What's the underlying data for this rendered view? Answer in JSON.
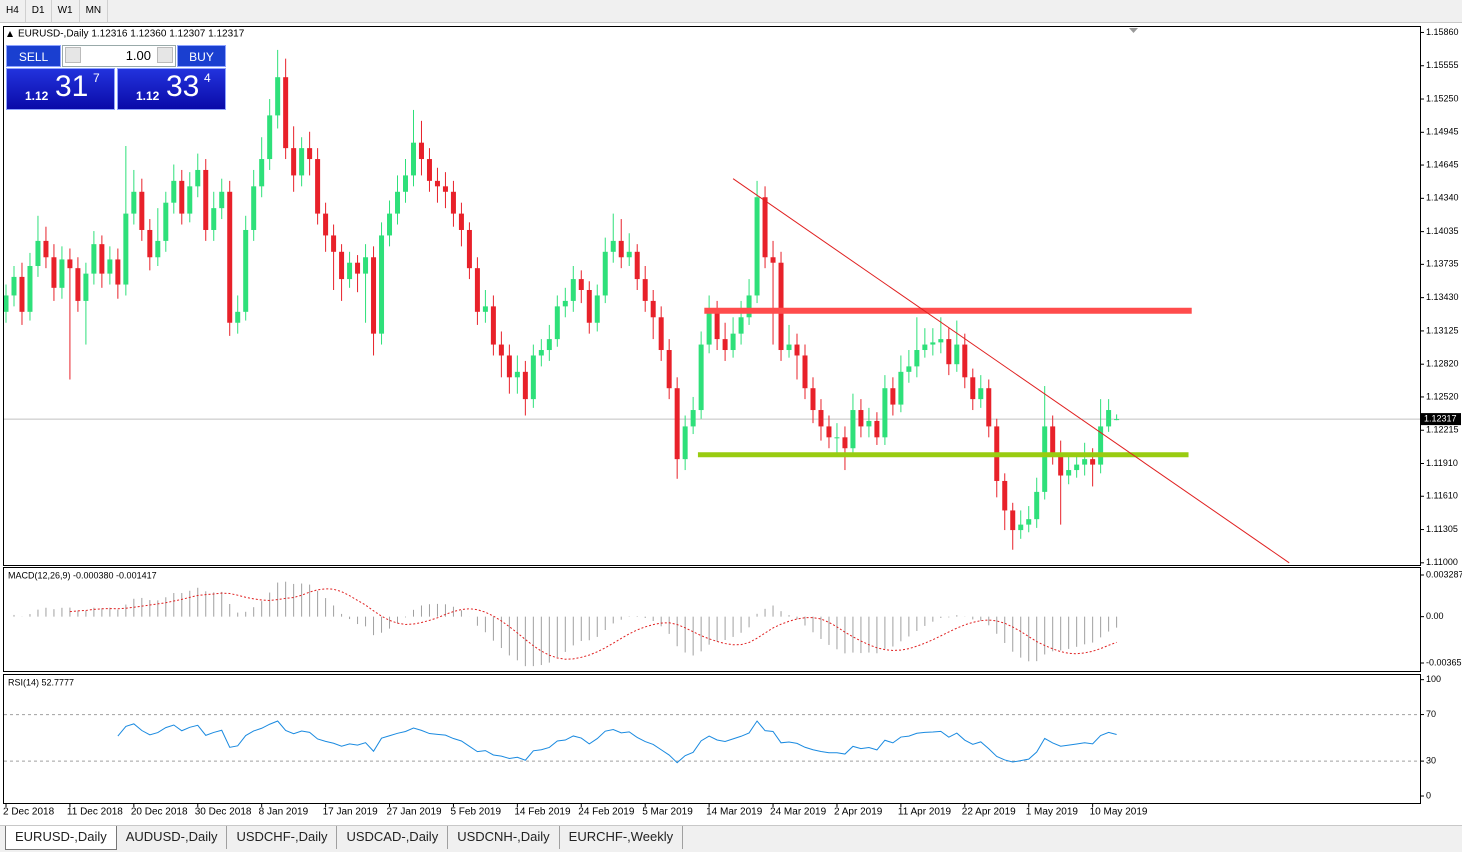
{
  "toolbar": {
    "timeframes": [
      "H4",
      "D1",
      "W1",
      "MN"
    ]
  },
  "tabs": [
    "EURUSD-,Daily",
    "AUDUSD-,Daily",
    "USDCHF-,Daily",
    "USDCAD-,Daily",
    "USDCNH-,Daily",
    "EURCHF-,Weekly"
  ],
  "trade": {
    "sell": "SELL",
    "buy": "BUY",
    "lots": "1.00",
    "bid": {
      "prefix": "1.12",
      "big": "31",
      "pip": "7"
    },
    "ask": {
      "prefix": "1.12",
      "big": "33",
      "pip": "4"
    }
  },
  "chart_data": [
    {
      "type": "candlestick",
      "title": "EURUSD-,Daily  1.12316 1.12360 1.12307 1.12317",
      "up_color": "#2ee07a",
      "down_color": "#e8212a",
      "categories": [
        "2 Dec 2018",
        null,
        null,
        null,
        null,
        null,
        null,
        null,
        "11 Dec 2018",
        null,
        null,
        null,
        null,
        null,
        null,
        null,
        "20 Dec 2018",
        null,
        null,
        null,
        null,
        null,
        null,
        null,
        "30 Dec 2018",
        null,
        null,
        null,
        null,
        null,
        null,
        null,
        "8 Jan 2019",
        null,
        null,
        null,
        null,
        null,
        null,
        null,
        "17 Jan 2019",
        null,
        null,
        null,
        null,
        null,
        null,
        null,
        "27 Jan 2019",
        null,
        null,
        null,
        null,
        null,
        null,
        null,
        "5 Feb 2019",
        null,
        null,
        null,
        null,
        null,
        null,
        null,
        "14 Feb 2019",
        null,
        null,
        null,
        null,
        null,
        null,
        null,
        "24 Feb 2019",
        null,
        null,
        null,
        null,
        null,
        null,
        null,
        "5 Mar 2019",
        null,
        null,
        null,
        null,
        null,
        null,
        null,
        "14 Mar 2019",
        null,
        null,
        null,
        null,
        null,
        null,
        null,
        "24 Mar 2019",
        null,
        null,
        null,
        null,
        null,
        null,
        null,
        "2 Apr 2019",
        null,
        null,
        null,
        null,
        null,
        null,
        null,
        "11 Apr 2019",
        null,
        null,
        null,
        null,
        null,
        null,
        null,
        "22 Apr 2019",
        null,
        null,
        null,
        null,
        null,
        null,
        null,
        "1 May 2019",
        null,
        null,
        null,
        null,
        null,
        null,
        null,
        "10 May 2019",
        null,
        null,
        null
      ],
      "open": [
        1.133,
        1.1345,
        1.1362,
        1.133,
        1.1372,
        1.1395,
        1.138,
        1.1352,
        1.1378,
        1.137,
        1.134,
        1.1365,
        1.1392,
        1.1365,
        1.1378,
        1.1355,
        1.142,
        1.144,
        1.1405,
        1.138,
        1.1395,
        1.143,
        1.145,
        1.142,
        1.1445,
        1.146,
        1.1405,
        1.1425,
        1.144,
        1.132,
        1.133,
        1.1405,
        1.1445,
        1.147,
        1.151,
        1.1545,
        1.148,
        1.1455,
        1.148,
        1.147,
        1.142,
        1.14,
        1.1385,
        1.136,
        1.1375,
        1.1365,
        1.138,
        1.131,
        1.14,
        1.142,
        1.144,
        1.1455,
        1.1485,
        1.147,
        1.145,
        1.1445,
        1.144,
        1.142,
        1.1405,
        1.137,
        1.133,
        1.1335,
        1.13,
        1.129,
        1.127,
        1.1275,
        1.125,
        1.129,
        1.1295,
        1.1305,
        1.1335,
        1.134,
        1.136,
        1.135,
        1.132,
        1.1345,
        1.1385,
        1.1395,
        1.138,
        1.1385,
        1.136,
        1.134,
        1.1325,
        1.1295,
        1.126,
        1.1195,
        1.1225,
        1.124,
        1.13,
        1.133,
        1.1305,
        1.1295,
        1.131,
        1.1325,
        1.1345,
        1.1435,
        1.138,
        1.1375,
        1.1295,
        1.13,
        1.129,
        1.126,
        1.124,
        1.1225,
        1.1215,
        1.1215,
        1.1205,
        1.124,
        1.1225,
        1.123,
        1.1215,
        1.126,
        1.1245,
        1.1275,
        1.128,
        1.1295,
        1.13,
        1.1302,
        1.1305,
        1.1282,
        1.13,
        1.127,
        1.125,
        1.126,
        1.1225,
        1.1175,
        1.1148,
        1.113,
        1.1135,
        1.114,
        1.1165,
        1.1225,
        1.12,
        1.118,
        1.1185,
        1.119,
        1.1195,
        1.119,
        1.1225,
        1.12316
      ],
      "high": [
        1.1355,
        1.1372,
        1.1375,
        1.1384,
        1.1418,
        1.1408,
        1.1392,
        1.139,
        1.1388,
        1.138,
        1.1375,
        1.1404,
        1.14,
        1.139,
        1.1388,
        1.1482,
        1.146,
        1.1452,
        1.1415,
        1.1425,
        1.144,
        1.1465,
        1.146,
        1.1458,
        1.1475,
        1.147,
        1.144,
        1.1452,
        1.145,
        1.1345,
        1.1418,
        1.146,
        1.149,
        1.1525,
        1.157,
        1.1562,
        1.15,
        1.149,
        1.1495,
        1.148,
        1.143,
        1.141,
        1.1392,
        1.1385,
        1.1382,
        1.1392,
        1.139,
        1.1412,
        1.1432,
        1.1455,
        1.147,
        1.1515,
        1.1505,
        1.148,
        1.1462,
        1.1458,
        1.145,
        1.143,
        1.1412,
        1.138,
        1.135,
        1.1345,
        1.1312,
        1.13,
        1.129,
        1.1285,
        1.13,
        1.1305,
        1.1318,
        1.1345,
        1.1352,
        1.1372,
        1.1368,
        1.1358,
        1.1355,
        1.1398,
        1.142,
        1.1415,
        1.1402,
        1.1392,
        1.1372,
        1.135,
        1.1335,
        1.1305,
        1.127,
        1.1235,
        1.1252,
        1.1312,
        1.1345,
        1.134,
        1.132,
        1.1325,
        1.134,
        1.136,
        1.145,
        1.1445,
        1.1395,
        1.1385,
        1.1318,
        1.131,
        1.13,
        1.127,
        1.125,
        1.1235,
        1.1228,
        1.1225,
        1.1255,
        1.125,
        1.1242,
        1.1238,
        1.1272,
        1.127,
        1.129,
        1.1295,
        1.1325,
        1.1315,
        1.1315,
        1.1325,
        1.1315,
        1.1322,
        1.131,
        1.1278,
        1.1272,
        1.1268,
        1.1232,
        1.1182,
        1.1155,
        1.1148,
        1.1152,
        1.1178,
        1.1262,
        1.1235,
        1.1212,
        1.1198,
        1.12,
        1.121,
        1.1205,
        1.125,
        1.125,
        1.1236
      ],
      "low": [
        1.132,
        1.1335,
        1.1318,
        1.1322,
        1.1362,
        1.137,
        1.134,
        1.1342,
        1.1268,
        1.133,
        1.13,
        1.1355,
        1.1352,
        1.1355,
        1.1342,
        1.1345,
        1.141,
        1.1395,
        1.1368,
        1.1372,
        1.1385,
        1.142,
        1.141,
        1.1412,
        1.1435,
        1.1395,
        1.1395,
        1.1415,
        1.1308,
        1.131,
        1.1322,
        1.1395,
        1.1435,
        1.146,
        1.1498,
        1.147,
        1.144,
        1.1445,
        1.1455,
        1.141,
        1.1385,
        1.135,
        1.134,
        1.1352,
        1.1348,
        1.132,
        1.129,
        1.13,
        1.139,
        1.141,
        1.143,
        1.1445,
        1.1455,
        1.144,
        1.143,
        1.1425,
        1.1408,
        1.139,
        1.136,
        1.1318,
        1.132,
        1.129,
        1.127,
        1.1255,
        1.1255,
        1.1235,
        1.1242,
        1.128,
        1.1285,
        1.1298,
        1.1325,
        1.133,
        1.1338,
        1.131,
        1.1312,
        1.1338,
        1.1375,
        1.137,
        1.1372,
        1.135,
        1.133,
        1.1305,
        1.1285,
        1.125,
        1.1177,
        1.1185,
        1.1218,
        1.1232,
        1.1292,
        1.1295,
        1.1285,
        1.1288,
        1.13,
        1.1318,
        1.1338,
        1.137,
        1.13,
        1.1285,
        1.1288,
        1.1268,
        1.125,
        1.1228,
        1.1212,
        1.1205,
        1.12,
        1.1185,
        1.1198,
        1.1215,
        1.1215,
        1.1208,
        1.1208,
        1.1235,
        1.1238,
        1.1265,
        1.127,
        1.1288,
        1.129,
        1.1292,
        1.1272,
        1.1275,
        1.126,
        1.124,
        1.1242,
        1.1215,
        1.116,
        1.113,
        1.1112,
        1.1122,
        1.1128,
        1.1132,
        1.1158,
        1.119,
        1.1135,
        1.1172,
        1.1178,
        1.118,
        1.117,
        1.1182,
        1.122,
        1.12307
      ],
      "close": [
        1.1345,
        1.1362,
        1.133,
        1.1372,
        1.1395,
        1.138,
        1.1352,
        1.1378,
        1.137,
        1.134,
        1.1365,
        1.1392,
        1.1365,
        1.1378,
        1.1355,
        1.142,
        1.144,
        1.1405,
        1.138,
        1.1395,
        1.143,
        1.145,
        1.142,
        1.1445,
        1.146,
        1.1405,
        1.1425,
        1.144,
        1.132,
        1.133,
        1.1405,
        1.1445,
        1.147,
        1.151,
        1.1545,
        1.148,
        1.1455,
        1.148,
        1.147,
        1.142,
        1.14,
        1.1385,
        1.136,
        1.1375,
        1.1365,
        1.138,
        1.131,
        1.14,
        1.142,
        1.144,
        1.1455,
        1.1485,
        1.147,
        1.145,
        1.1445,
        1.144,
        1.142,
        1.1405,
        1.137,
        1.133,
        1.1335,
        1.13,
        1.129,
        1.127,
        1.1275,
        1.125,
        1.129,
        1.1295,
        1.1305,
        1.1335,
        1.134,
        1.136,
        1.135,
        1.132,
        1.1345,
        1.1385,
        1.1395,
        1.138,
        1.1385,
        1.136,
        1.134,
        1.1325,
        1.1295,
        1.126,
        1.1195,
        1.1225,
        1.124,
        1.13,
        1.133,
        1.1305,
        1.1295,
        1.131,
        1.1325,
        1.1345,
        1.1435,
        1.138,
        1.1375,
        1.1295,
        1.13,
        1.129,
        1.126,
        1.124,
        1.1225,
        1.1215,
        1.1215,
        1.1205,
        1.124,
        1.1225,
        1.123,
        1.1215,
        1.126,
        1.1245,
        1.1275,
        1.128,
        1.1295,
        1.13,
        1.1302,
        1.1305,
        1.1282,
        1.13,
        1.127,
        1.125,
        1.126,
        1.1225,
        1.1175,
        1.1148,
        1.113,
        1.1135,
        1.114,
        1.1165,
        1.1225,
        1.12,
        1.118,
        1.1185,
        1.119,
        1.1195,
        1.119,
        1.1225,
        1.124,
        1.12317
      ],
      "ylim": [
        1.1098,
        1.1591
      ],
      "yticks": [
        {
          "value": 1.1586,
          "label": "1.15860"
        },
        {
          "value": 1.15555,
          "label": "1.15555"
        },
        {
          "value": 1.1525,
          "label": "1.15250"
        },
        {
          "value": 1.14945,
          "label": "1.14945"
        },
        {
          "value": 1.14645,
          "label": "1.14645"
        },
        {
          "value": 1.1434,
          "label": "1.14340"
        },
        {
          "value": 1.14035,
          "label": "1.14035"
        },
        {
          "value": 1.13735,
          "label": "1.13735"
        },
        {
          "value": 1.1343,
          "label": "1.13430"
        },
        {
          "value": 1.13125,
          "label": "1.13125"
        },
        {
          "value": 1.1282,
          "label": "1.12820"
        },
        {
          "value": 1.1252,
          "label": "1.12520"
        },
        {
          "value": 1.12215,
          "label": "1.12215"
        },
        {
          "value": 1.1191,
          "label": "1.11910"
        },
        {
          "value": 1.1161,
          "label": "1.11610"
        },
        {
          "value": 1.11305,
          "label": "1.11305"
        },
        {
          "value": 1.11,
          "label": "1.11000"
        }
      ],
      "lines": [
        {
          "color": "#ff4c4c",
          "width": 6,
          "from": [
            87.4,
            1.1331
          ],
          "to": [
            148.4,
            1.1331
          ]
        },
        {
          "color": "#99cc11",
          "width": 5,
          "from": [
            86.6,
            1.1199
          ],
          "to": [
            148,
            1.1199
          ]
        },
        {
          "color": "#e02020",
          "width": 1,
          "from": [
            91,
            1.1452
          ],
          "to": [
            160.6,
            1.11
          ]
        }
      ]
    },
    {
      "type": "macd",
      "title": "MACD(12,26,9) -0.000380 -0.001417",
      "periods": [
        12,
        26,
        9
      ],
      "color": "#a0a0a0",
      "signal_color": "#e02020",
      "ylim": [
        -0.00429,
        0.00384
      ],
      "yticks": [
        0.003287,
        {
          "value": 0,
          "label": "0.00"
        },
        -0.003659
      ]
    },
    {
      "type": "rsi",
      "title": "RSI(14) 52.7777",
      "period": 14,
      "color": "#1a8ae0",
      "ylim": [
        -6,
        104
      ],
      "yticks": [
        100,
        70,
        30,
        0
      ],
      "levels": [
        70,
        30
      ]
    }
  ]
}
